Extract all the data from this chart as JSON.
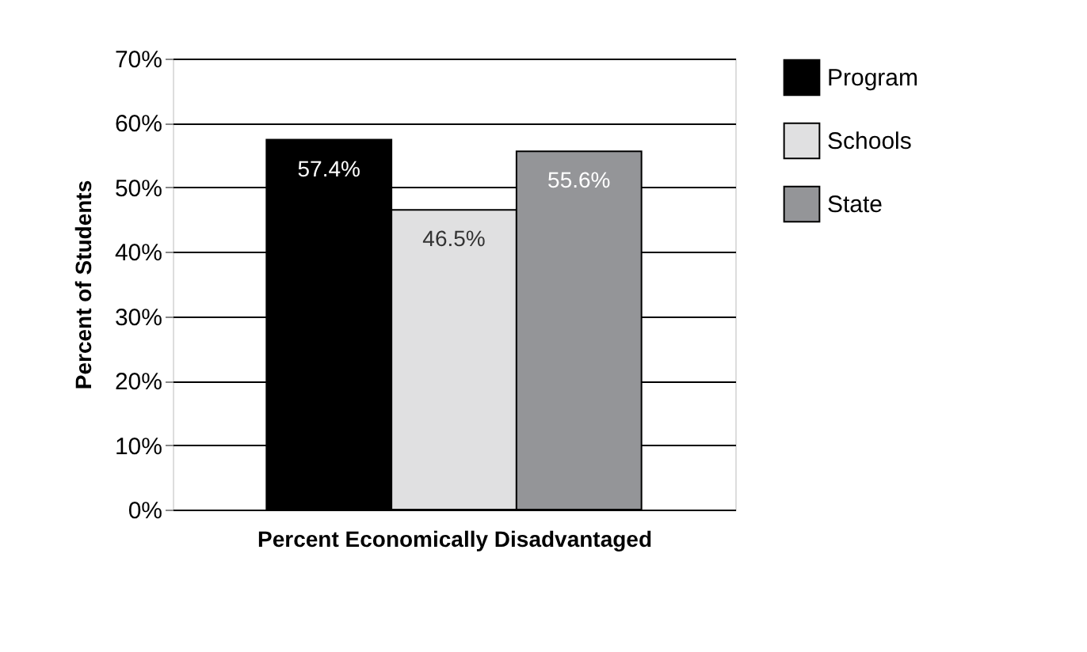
{
  "chart_data": {
    "type": "bar",
    "xlabel": "Percent Economically Disadvantaged",
    "ylabel": "Percent of Students",
    "categories": [
      null
    ],
    "series": [
      {
        "name": "Program",
        "color": "#000000",
        "values": [
          57.4
        ],
        "value_labels": [
          "57.4%"
        ]
      },
      {
        "name": "Schools",
        "color": "#e0e0e1",
        "values": [
          46.5
        ],
        "value_labels": [
          "46.5%"
        ]
      },
      {
        "name": "State",
        "color": "#949598",
        "values": [
          55.6
        ],
        "value_labels": [
          "55.6%"
        ]
      }
    ],
    "ylim": [
      0,
      70
    ],
    "yticks": [
      {
        "value": 0,
        "label": "0%"
      },
      {
        "value": 10,
        "label": "10%"
      },
      {
        "value": 20,
        "label": "20%"
      },
      {
        "value": 30,
        "label": "30%"
      },
      {
        "value": 40,
        "label": "40%"
      },
      {
        "value": 50,
        "label": "50%"
      },
      {
        "value": 60,
        "label": "60%"
      },
      {
        "value": 70,
        "label": "70%"
      }
    ],
    "grid": "y",
    "legend": "top right"
  }
}
